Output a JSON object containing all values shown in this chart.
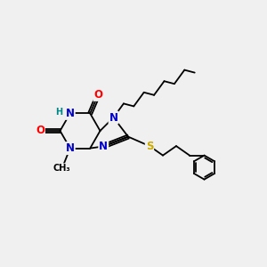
{
  "bg_color": "#f0f0f0",
  "atom_colors": {
    "C": "#000000",
    "N": "#0000cc",
    "O": "#ff0000",
    "S": "#ccaa00",
    "H": "#008888"
  },
  "bond_color": "#000000",
  "bond_width": 1.3,
  "font_size_atoms": 8.5,
  "figsize": [
    3.0,
    3.0
  ],
  "dpi": 100
}
